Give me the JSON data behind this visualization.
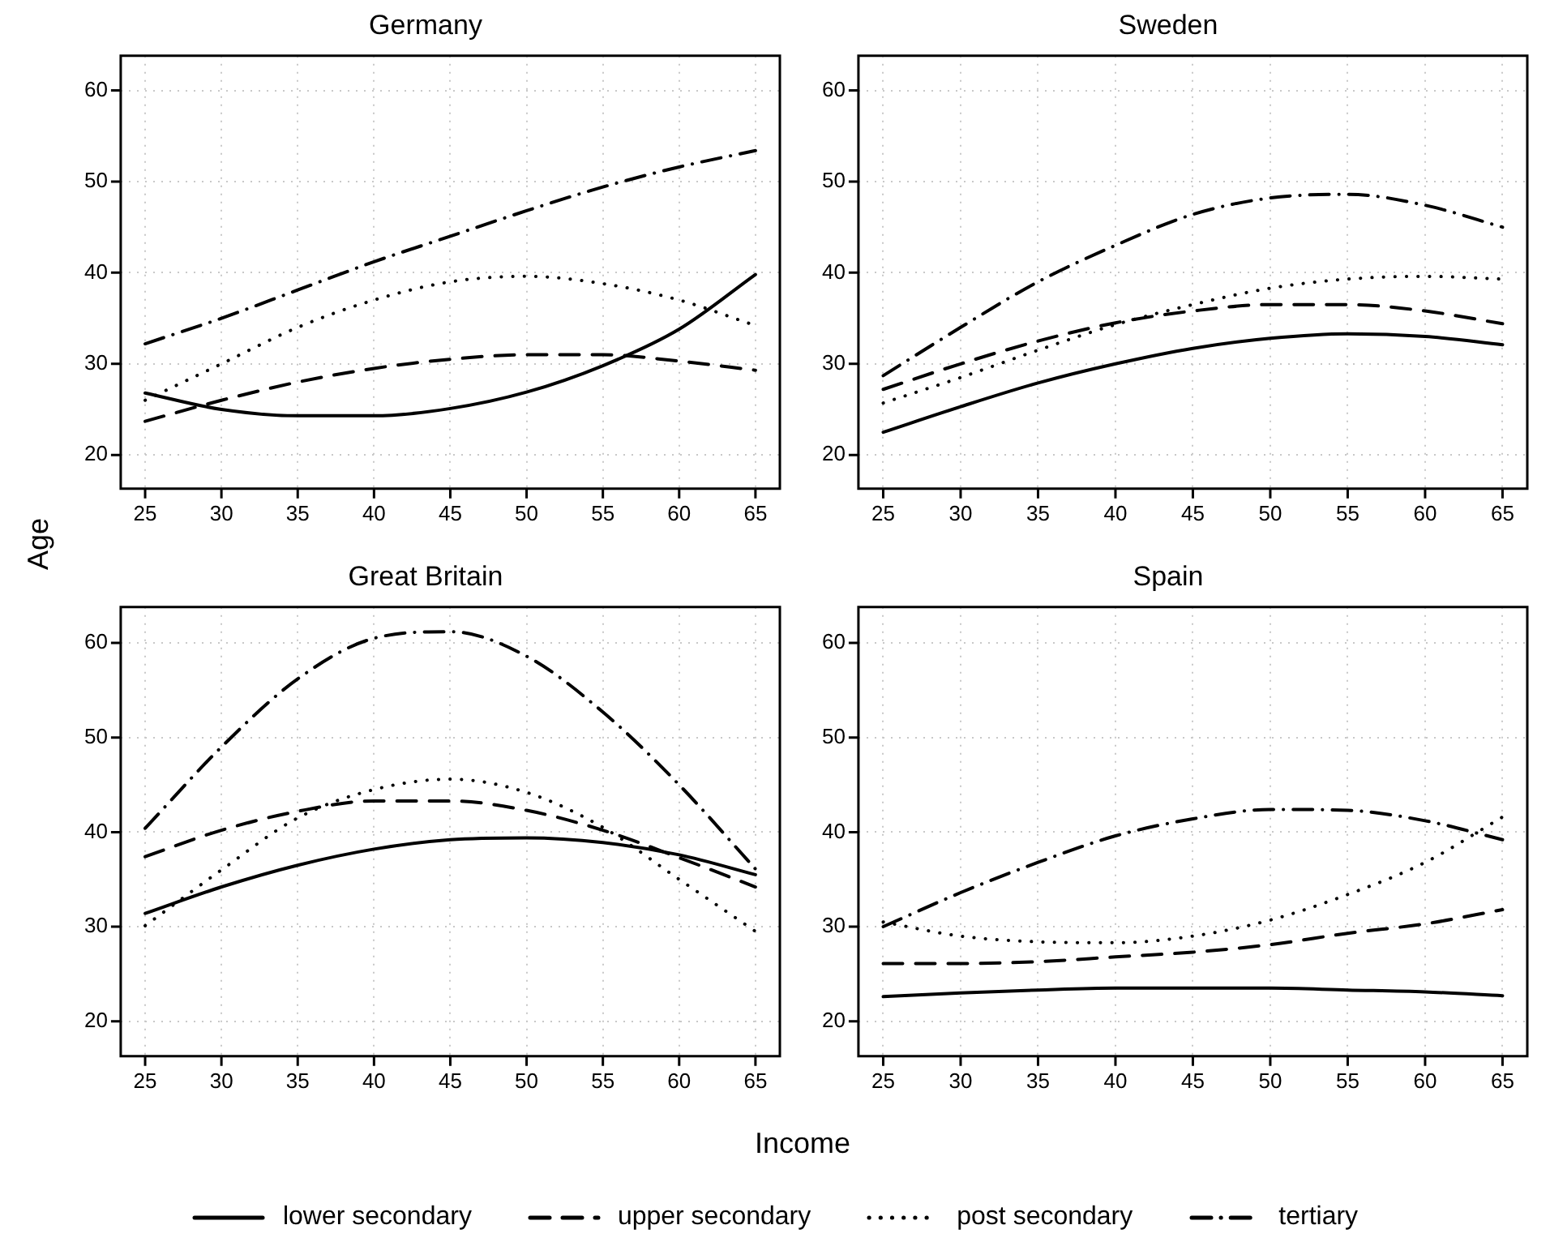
{
  "chart_data": [
    {
      "type": "line",
      "title": "Germany",
      "ylabel": "Age",
      "legend": "bottom",
      "x": [
        25,
        30,
        35,
        40,
        45,
        50,
        55,
        60,
        65
      ],
      "xlim": [
        23.4,
        66.6
      ],
      "xticks": [
        25,
        30,
        35,
        40,
        45,
        50,
        55,
        60,
        65
      ],
      "ylim": [
        16.3,
        63.8
      ],
      "yticks": [
        20,
        30,
        40,
        50,
        60
      ],
      "grid": true,
      "marker": "none",
      "series": [
        {
          "name": "lower secondary",
          "color": "#000000",
          "line_style": "solid",
          "values": [
            26.8,
            25,
            24.3,
            24.3,
            25.1,
            26.9,
            29.8,
            33.8,
            39.8
          ]
        },
        {
          "name": "upper secondary",
          "color": "#000000",
          "line_style": "dashed",
          "values": [
            23.7,
            26,
            28,
            29.5,
            30.5,
            31,
            31,
            30.3,
            29.3
          ]
        },
        {
          "name": "post secondary",
          "color": "#000000",
          "line_style": "dotted",
          "values": [
            26,
            30,
            34,
            37,
            39,
            39.6,
            38.8,
            37,
            34.2
          ]
        },
        {
          "name": "tertiary",
          "color": "#000000",
          "line_style": "dashdot",
          "values": [
            32.2,
            35,
            38.1,
            41.2,
            44,
            46.8,
            49.4,
            51.6,
            53.4
          ]
        }
      ]
    },
    {
      "type": "line",
      "title": "Sweden",
      "x": [
        25,
        30,
        35,
        40,
        45,
        50,
        55,
        60,
        65
      ],
      "xlim": [
        23.4,
        66.6
      ],
      "xticks": [
        25,
        30,
        35,
        40,
        45,
        50,
        55,
        60,
        65
      ],
      "ylim": [
        16.3,
        63.8
      ],
      "yticks": [
        20,
        30,
        40,
        50,
        60
      ],
      "grid": true,
      "marker": "none",
      "series": [
        {
          "color": "#000000",
          "line_style": "solid",
          "values": [
            22.5,
            25.3,
            27.9,
            30,
            31.7,
            32.8,
            33.3,
            33,
            32.1
          ]
        },
        {
          "color": "#000000",
          "line_style": "dashed",
          "values": [
            27.2,
            30,
            32.5,
            34.5,
            35.8,
            36.5,
            36.5,
            35.8,
            34.4
          ]
        },
        {
          "color": "#000000",
          "line_style": "dotted",
          "values": [
            25.7,
            28.5,
            31.5,
            34.3,
            36.5,
            38.3,
            39.3,
            39.6,
            39.3
          ]
        },
        {
          "color": "#000000",
          "line_style": "dashdot",
          "values": [
            28.7,
            34,
            39,
            43,
            46.4,
            48.2,
            48.6,
            47.4,
            45
          ]
        }
      ]
    },
    {
      "type": "line",
      "title": "Great Britain",
      "xlabel": "Income",
      "x": [
        25,
        30,
        35,
        40,
        45,
        50,
        55,
        60,
        65
      ],
      "xlim": [
        23.4,
        66.6
      ],
      "xticks": [
        25,
        30,
        35,
        40,
        45,
        50,
        55,
        60,
        65
      ],
      "ylim": [
        16.3,
        63.8
      ],
      "yticks": [
        20,
        30,
        40,
        50,
        60
      ],
      "grid": true,
      "marker": "none",
      "series": [
        {
          "color": "#000000",
          "line_style": "solid",
          "values": [
            31.4,
            34.2,
            36.5,
            38.2,
            39.2,
            39.4,
            38.9,
            37.6,
            35.5
          ]
        },
        {
          "color": "#000000",
          "line_style": "dashed",
          "values": [
            37.4,
            40.2,
            42.2,
            43.3,
            43.3,
            42.3,
            40.2,
            37.3,
            34.2
          ]
        },
        {
          "color": "#000000",
          "line_style": "dotted",
          "values": [
            30.1,
            36,
            41.5,
            44.5,
            45.6,
            44.2,
            40.5,
            35,
            29.5
          ]
        },
        {
          "color": "#000000",
          "line_style": "dashdot",
          "values": [
            40.4,
            49,
            56.2,
            60.5,
            61.2,
            58.6,
            52.7,
            45,
            36.1
          ]
        }
      ]
    },
    {
      "type": "line",
      "title": "Spain",
      "x": [
        25,
        30,
        35,
        40,
        45,
        50,
        55,
        60,
        65
      ],
      "xlim": [
        23.4,
        66.6
      ],
      "xticks": [
        25,
        30,
        35,
        40,
        45,
        50,
        55,
        60,
        65
      ],
      "ylim": [
        16.3,
        63.8
      ],
      "yticks": [
        20,
        30,
        40,
        50,
        60
      ],
      "grid": true,
      "marker": "none",
      "series": [
        {
          "color": "#000000",
          "line_style": "solid",
          "values": [
            22.6,
            23,
            23.3,
            23.5,
            23.5,
            23.5,
            23.3,
            23.1,
            22.7
          ]
        },
        {
          "color": "#000000",
          "line_style": "dashed",
          "values": [
            26.1,
            26.1,
            26.3,
            26.8,
            27.3,
            28.1,
            29.3,
            30.3,
            31.8
          ]
        },
        {
          "color": "#000000",
          "line_style": "dotted",
          "values": [
            30.5,
            29,
            28.4,
            28.3,
            29,
            30.7,
            33.4,
            36.8,
            41.6
          ]
        },
        {
          "color": "#000000",
          "line_style": "dashdot",
          "values": [
            30,
            33.6,
            36.8,
            39.6,
            41.4,
            42.4,
            42.3,
            41.2,
            39.2
          ]
        }
      ]
    }
  ]
}
